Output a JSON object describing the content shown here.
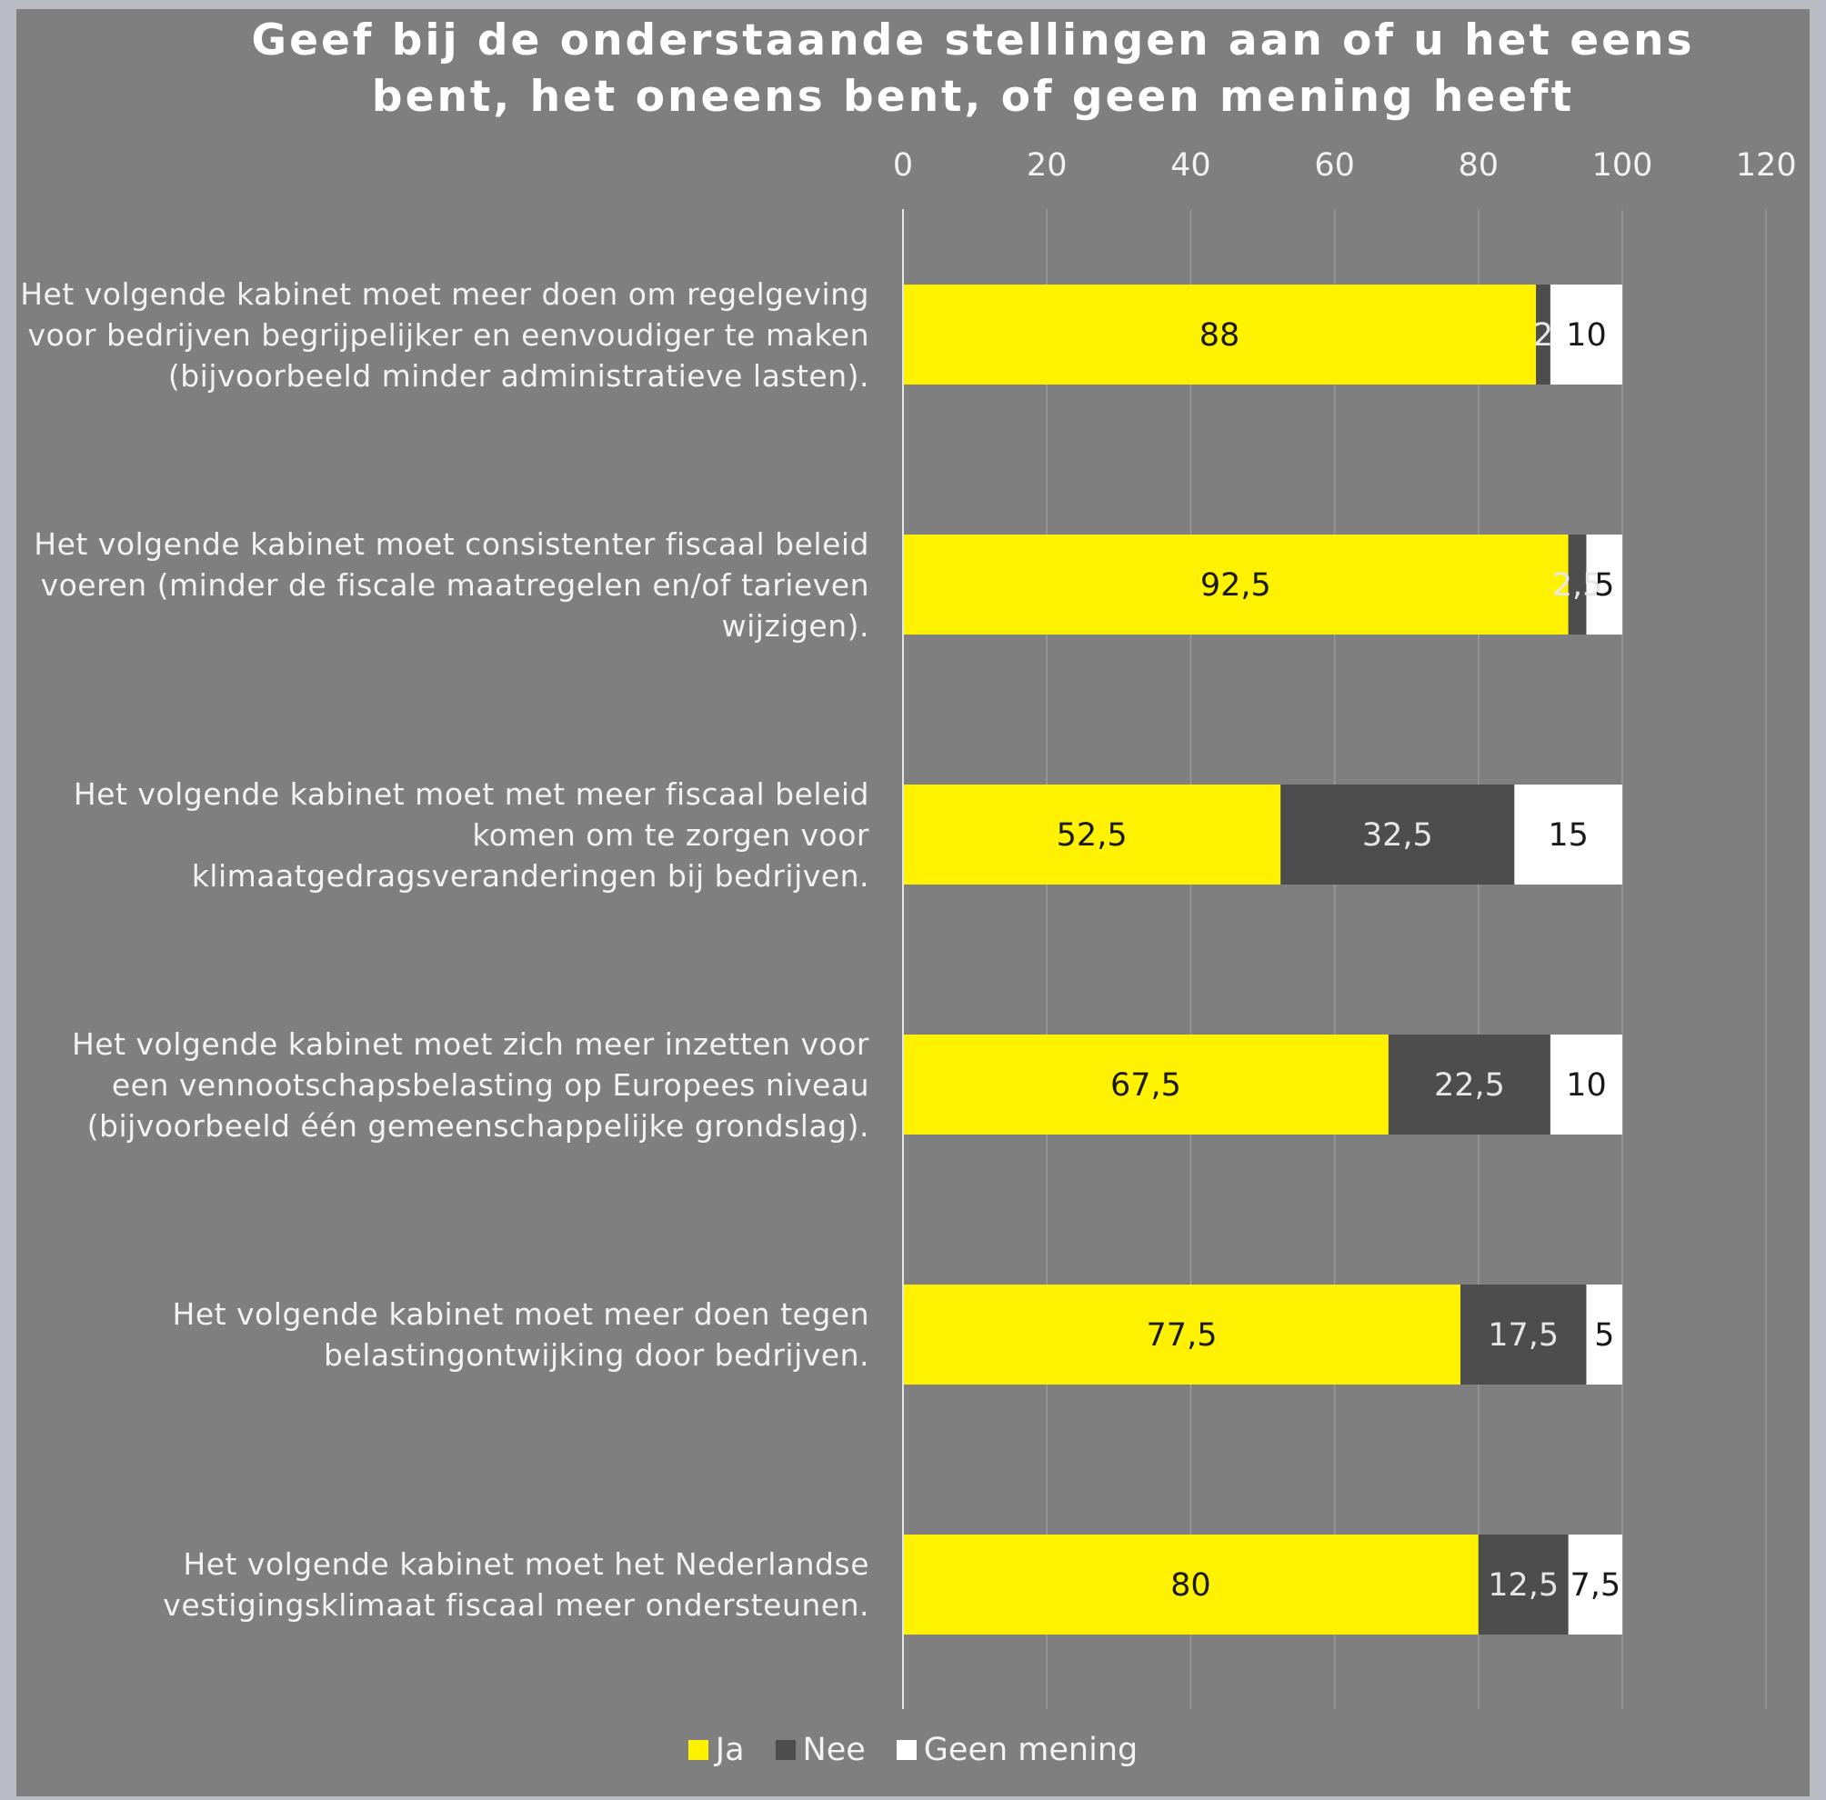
{
  "chart_data": {
    "type": "bar",
    "orientation": "horizontal",
    "stacked": true,
    "title": "Geef bij de onderstaande stellingen aan of u het eens bent, het oneens bent, of geen mening heeft",
    "title_lines": [
      "Geef bij de onderstaande stellingen aan of u het eens",
      "bent, het oneens bent, of geen mening heeft"
    ],
    "categories": [
      [
        "Het volgende kabinet moet meer doen om regelgeving",
        "voor bedrijven begrijpelijker en eenvoudiger te maken",
        "(bijvoorbeeld minder administratieve lasten)."
      ],
      [
        "Het volgende kabinet moet consistenter fiscaal beleid",
        "voeren (minder de fiscale maatregelen en/of tarieven",
        "wijzigen)."
      ],
      [
        "Het volgende kabinet moet met meer fiscaal beleid",
        "komen om te zorgen voor",
        "klimaatgedragsveranderingen bij bedrijven."
      ],
      [
        "Het volgende kabinet moet zich meer inzetten voor",
        "een vennootschapsbelasting op Europees niveau",
        "(bijvoorbeeld één gemeenschappelijke grondslag)."
      ],
      [
        "Het volgende kabinet moet meer doen tegen",
        "belastingontwijking door bedrijven."
      ],
      [
        "Het volgende kabinet moet het Nederlandse",
        "vestigingsklimaat fiscaal meer ondersteunen."
      ]
    ],
    "series": [
      {
        "name": "Ja",
        "color": "#fff200",
        "label_color": "#1a1a1a",
        "values": [
          88,
          92.5,
          52.5,
          67.5,
          77.5,
          80
        ],
        "labels": [
          "88",
          "92,5",
          "52,5",
          "67,5",
          "77,5",
          "80"
        ]
      },
      {
        "name": "Nee",
        "color": "#4d4d4d",
        "label_color": "#e6e6e6",
        "values": [
          2,
          2.5,
          32.5,
          22.5,
          17.5,
          12.5
        ],
        "labels": [
          "2",
          "2,5",
          "32,5",
          "22,5",
          "17,5",
          "12,5"
        ]
      },
      {
        "name": "Geen mening",
        "color": "#ffffff",
        "label_color": "#1a1a1a",
        "values": [
          10,
          5,
          15,
          10,
          5,
          7.5
        ],
        "labels": [
          "10",
          "5",
          "15",
          "10",
          "5",
          "7,5"
        ]
      }
    ],
    "xlim": [
      0,
      120
    ],
    "xticks": [
      0,
      20,
      40,
      60,
      80,
      100,
      120
    ],
    "xtick_labels": [
      "0",
      "20",
      "40",
      "60",
      "80",
      "100",
      "120"
    ],
    "xaxis_position": "top",
    "grid": true,
    "legend_position": "bottom"
  }
}
